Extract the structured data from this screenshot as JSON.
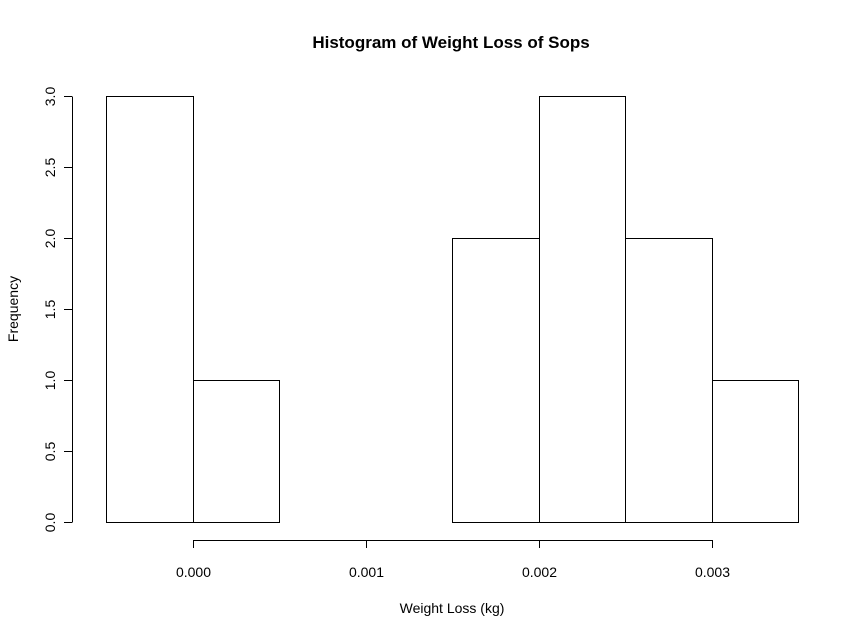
{
  "chart_data": {
    "type": "histogram",
    "title": "Histogram of Weight Loss of Sops",
    "xlabel": "Weight Loss (kg)",
    "ylabel": "Frequency",
    "bins": [
      {
        "start": -0.0005,
        "end": 0.0,
        "count": 3
      },
      {
        "start": 0.0,
        "end": 0.0005,
        "count": 1
      },
      {
        "start": 0.0005,
        "end": 0.001,
        "count": 0
      },
      {
        "start": 0.001,
        "end": 0.0015,
        "count": 0
      },
      {
        "start": 0.0015,
        "end": 0.002,
        "count": 2
      },
      {
        "start": 0.002,
        "end": 0.0025,
        "count": 3
      },
      {
        "start": 0.0025,
        "end": 0.003,
        "count": 2
      },
      {
        "start": 0.003,
        "end": 0.0035,
        "count": 1
      }
    ],
    "xlim": [
      -0.0005,
      0.0035
    ],
    "ylim": [
      0,
      3
    ],
    "x_ticks": [
      {
        "value": 0.0,
        "label": "0.000"
      },
      {
        "value": 0.001,
        "label": "0.001"
      },
      {
        "value": 0.002,
        "label": "0.002"
      },
      {
        "value": 0.003,
        "label": "0.003"
      }
    ],
    "y_ticks": [
      {
        "value": 0.0,
        "label": "0.0"
      },
      {
        "value": 0.5,
        "label": "0.5"
      },
      {
        "value": 1.0,
        "label": "1.0"
      },
      {
        "value": 1.5,
        "label": "1.5"
      },
      {
        "value": 2.0,
        "label": "2.0"
      },
      {
        "value": 2.5,
        "label": "2.5"
      },
      {
        "value": 3.0,
        "label": "3.0"
      }
    ],
    "grid": false,
    "bar_fill": "#ffffff",
    "bar_stroke": "#000000"
  }
}
